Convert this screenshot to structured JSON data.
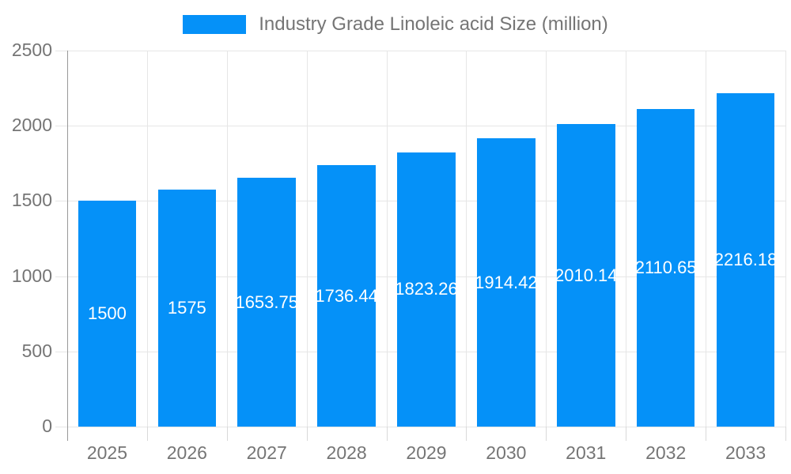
{
  "legend": {
    "label": "Industry Grade Linoleic acid Size (million)"
  },
  "colors": {
    "bar": "#0591f8",
    "grid": "#e6e6e6",
    "x_tick": "#d9d9d9",
    "axis": "#999999",
    "text": "#757575",
    "bar_label": "#ffffff",
    "background": "#ffffff"
  },
  "chart_data": {
    "type": "bar",
    "title": "Industry Grade Linoleic acid Size (million)",
    "series_name": "Industry Grade Linoleic acid Size (million)",
    "categories": [
      "2025",
      "2026",
      "2027",
      "2028",
      "2029",
      "2030",
      "2031",
      "2032",
      "2033"
    ],
    "values": [
      1500,
      1575,
      1653.75,
      1736.44,
      1823.26,
      1914.42,
      2010.14,
      2110.65,
      2216.18
    ],
    "value_labels": [
      "1500",
      "1575",
      "1653.75",
      "1736.44",
      "1823.26",
      "1914.42",
      "2010.14",
      "2110.65",
      "2216.18"
    ],
    "xlabel": "",
    "ylabel": "",
    "ylim": [
      0,
      2500
    ],
    "yticks": [
      0,
      500,
      1000,
      1500,
      2000,
      2500
    ],
    "grid": true,
    "legend_position": "top",
    "value_label_position": "bar-center"
  }
}
